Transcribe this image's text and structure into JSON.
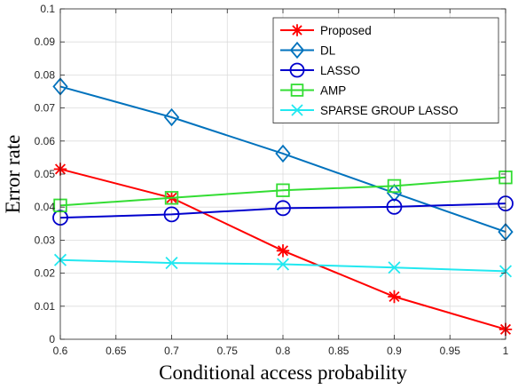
{
  "chart_data": {
    "type": "line",
    "xlabel": "Conditional access probability",
    "ylabel": "Error rate",
    "xlim": [
      0.6,
      1
    ],
    "ylim": [
      0,
      0.1
    ],
    "xticks": [
      "0.6",
      "0.65",
      "0.7",
      "0.75",
      "0.8",
      "0.85",
      "0.9",
      "0.95",
      "1"
    ],
    "yticks": [
      "0",
      "0.01",
      "0.02",
      "0.03",
      "0.04",
      "0.05",
      "0.06",
      "0.07",
      "0.08",
      "0.09",
      "0.1"
    ],
    "grid": true,
    "legend_position": "top-right",
    "x": [
      0.6,
      0.7,
      0.8,
      0.9,
      1.0
    ],
    "series": [
      {
        "name": "Proposed",
        "color": "#ff0000",
        "marker": "asterisk",
        "values": [
          0.0515,
          0.0428,
          0.0268,
          0.0129,
          0.003
        ]
      },
      {
        "name": "DL",
        "color": "#0072bd",
        "marker": "diamond",
        "values": [
          0.0765,
          0.0672,
          0.0562,
          0.0443,
          0.0325
        ]
      },
      {
        "name": "LASSO",
        "color": "#0000cd",
        "marker": "circle",
        "values": [
          0.0368,
          0.0378,
          0.0397,
          0.0401,
          0.0411
        ]
      },
      {
        "name": "AMP",
        "color": "#33dd33",
        "marker": "square",
        "values": [
          0.0405,
          0.0428,
          0.0451,
          0.0464,
          0.049
        ]
      },
      {
        "name": "SPARSE GROUP LASSO",
        "color": "#22e8f0",
        "marker": "x",
        "values": [
          0.024,
          0.0231,
          0.0227,
          0.0217,
          0.0206
        ]
      }
    ]
  }
}
